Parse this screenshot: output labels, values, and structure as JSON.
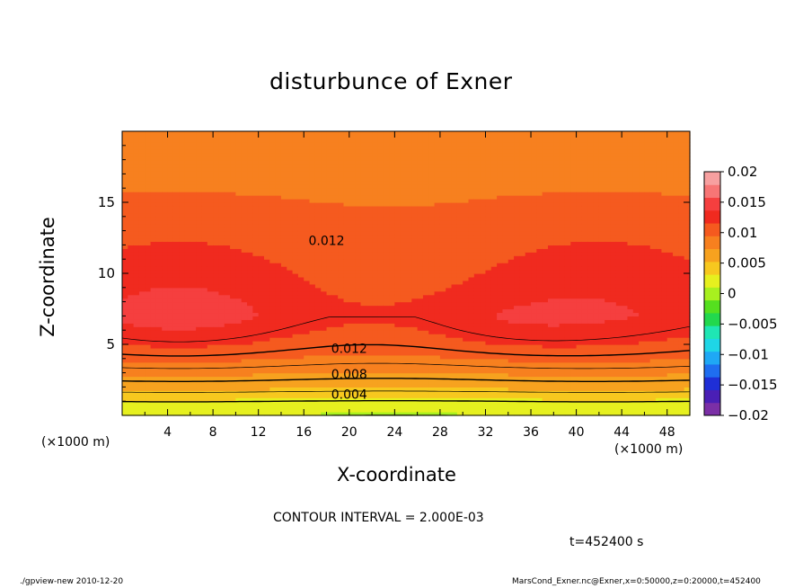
{
  "chart_data": {
    "type": "heatmap",
    "title": "disturbunce of Exner",
    "xlabel": "X-coordinate",
    "ylabel": "Z-coordinate",
    "x_unit": "(×1000 m)",
    "y_unit": "(×1000 m)",
    "xlim": [
      0,
      50
    ],
    "ylim": [
      0,
      20
    ],
    "x_ticks": [
      4,
      8,
      12,
      16,
      20,
      24,
      28,
      32,
      36,
      40,
      44,
      48
    ],
    "y_ticks": [
      5,
      10,
      15
    ],
    "contour_interval_text": "CONTOUR INTERVAL = 2.000E-03",
    "contour_labels": [
      {
        "text": "0.012",
        "x": 18,
        "z": 12.3
      },
      {
        "text": "0.012",
        "x": 20,
        "z": 4.7
      },
      {
        "text": "0.008",
        "x": 20,
        "z": 2.9
      },
      {
        "text": "0.004",
        "x": 20,
        "z": 1.5
      }
    ],
    "colorbar": {
      "min": -0.02,
      "max": 0.02,
      "tick_values": [
        0.02,
        0.015,
        0.01,
        0.005,
        0,
        -0.005,
        -0.01,
        -0.015,
        -0.02
      ],
      "tick_labels": [
        "0.02",
        "0.015",
        "0.01",
        "0.005",
        "0",
        "−0.005",
        "−0.01",
        "−0.015",
        "−0.02"
      ]
    },
    "field_profile": [
      {
        "z": 0.0,
        "value": 0.002
      },
      {
        "z": 1.0,
        "value": 0.004
      },
      {
        "z": 2.0,
        "value": 0.007
      },
      {
        "z": 3.0,
        "value": 0.009
      },
      {
        "z": 4.0,
        "value": 0.011
      },
      {
        "z": 5.0,
        "value": 0.0125
      },
      {
        "z": 7.0,
        "value": 0.0145
      },
      {
        "z": 10.0,
        "value": 0.0135
      },
      {
        "z": 13.5,
        "value": 0.012
      },
      {
        "z": 16.0,
        "value": 0.0108
      },
      {
        "z": 19.0,
        "value": 0.0098
      },
      {
        "z": 20.0,
        "value": 0.0096
      }
    ],
    "highs": [
      {
        "x": 5,
        "z": 7.0,
        "value": 0.0158
      },
      {
        "x": 34,
        "z": 6.5,
        "value": 0.0152
      }
    ]
  },
  "time_text": "t=452400 s",
  "footer_left": "./gpview-new   2010-12-20",
  "footer_right": "MarsCond_Exner.nc@Exner,x=0:50000,z=0:20000,t=452400",
  "colors": {
    "background": "#ffffff",
    "ink": "#000000"
  }
}
